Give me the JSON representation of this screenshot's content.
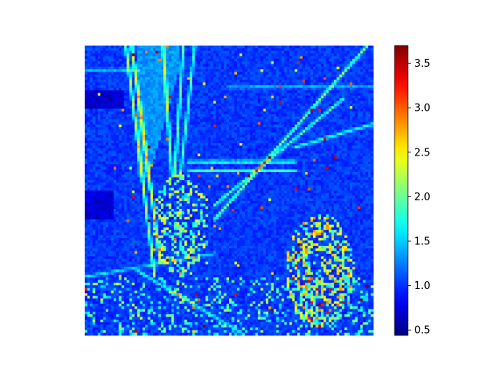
{
  "chart_data": {
    "type": "heatmap",
    "title": "",
    "xlabel": "",
    "ylabel": "",
    "axes_visible": false,
    "grid": false,
    "colormap": "jet",
    "colorbar": {
      "placement": "right",
      "range": [
        0.44,
        3.7
      ],
      "ticks": [
        0.5,
        1.0,
        1.5,
        2.0,
        2.5,
        3.0,
        3.5
      ],
      "tick_labels": [
        "0.5",
        "1.0",
        "1.5",
        "2.0",
        "2.5",
        "3.0",
        "3.5"
      ]
    },
    "grid_size": [
      110,
      110
    ],
    "value_summary": {
      "background": 0.95,
      "edges": 1.6,
      "max_observed": 3.7,
      "min_observed": 0.44
    }
  }
}
